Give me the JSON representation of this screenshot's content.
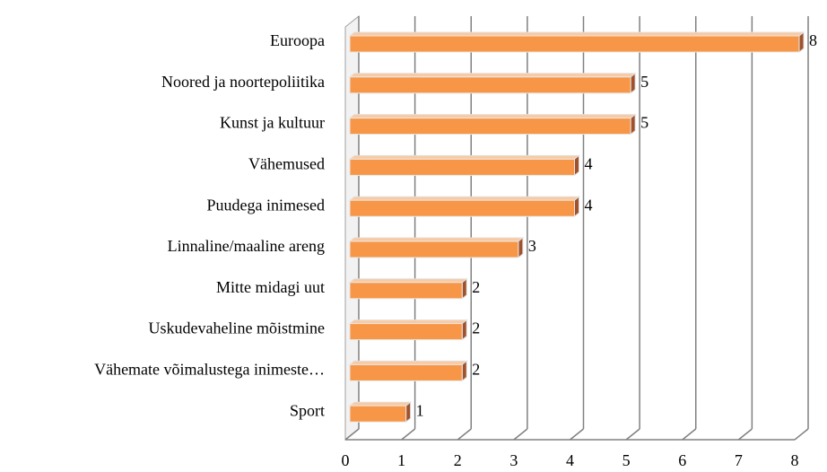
{
  "chart_data": {
    "type": "bar",
    "orientation": "horizontal",
    "categories": [
      "Euroopa",
      "Noored ja noortepoliitika",
      "Kunst ja kultuur",
      "Vähemused",
      "Puudega inimesed",
      "Linnaline/maaline areng",
      "Mitte midagi uut",
      "Uskudevaheline mõistmine",
      "Vähemate võimalustega inimeste…",
      "Sport"
    ],
    "values": [
      8,
      5,
      5,
      4,
      4,
      3,
      2,
      2,
      2,
      1
    ],
    "color": "#f79646",
    "xlim": [
      0,
      8
    ],
    "xticks": [
      0,
      1,
      2,
      3,
      4,
      5,
      6,
      7,
      8
    ],
    "grid": true
  }
}
